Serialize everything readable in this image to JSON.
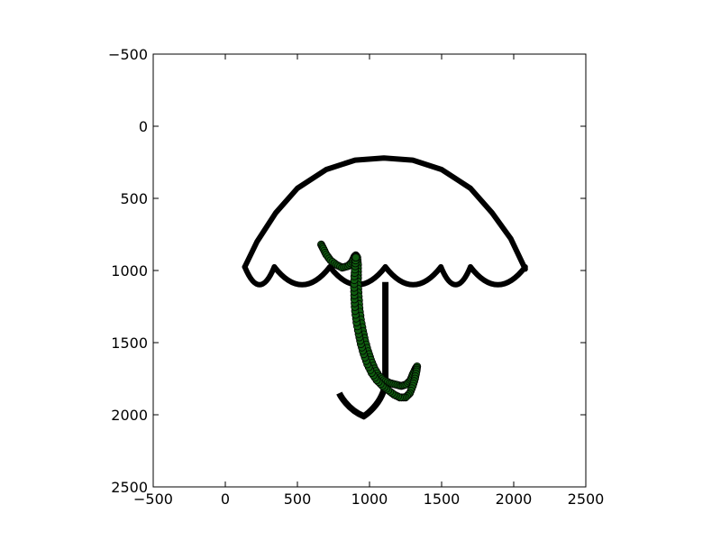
{
  "chart_data": {
    "type": "scatter",
    "title": "",
    "xlabel": "",
    "ylabel": "",
    "xlim": [
      -500,
      2500
    ],
    "ylim": [
      2500,
      -500
    ],
    "y_inverted": true,
    "grid": false,
    "xticks": [
      -500,
      0,
      500,
      1000,
      1500,
      2000,
      2500
    ],
    "yticks": [
      -500,
      0,
      500,
      1000,
      1500,
      2000,
      2500
    ],
    "xtick_labels": [
      "−500",
      "0",
      "500",
      "1000",
      "1500",
      "2000",
      "2500"
    ],
    "ytick_labels": [
      "−500",
      "0",
      "500",
      "1000",
      "1500",
      "2000",
      "2500"
    ],
    "background_image": {
      "subject": "umbrella outline",
      "color": "#000000",
      "canopy_top": [
        [
          135,
          975
        ],
        [
          220,
          800
        ],
        [
          350,
          600
        ],
        [
          500,
          430
        ],
        [
          700,
          300
        ],
        [
          900,
          235
        ],
        [
          1100,
          220
        ],
        [
          1300,
          235
        ],
        [
          1500,
          300
        ],
        [
          1700,
          430
        ],
        [
          1850,
          600
        ],
        [
          1980,
          780
        ],
        [
          2080,
          990
        ]
      ],
      "canopy_scallops": [
        [
          [
            135,
            975
          ],
          [
            340,
            975
          ]
        ],
        [
          [
            340,
            975
          ],
          [
            725,
            975
          ]
        ],
        [
          [
            725,
            975
          ],
          [
            1110,
            975
          ]
        ],
        [
          [
            1110,
            975
          ],
          [
            1495,
            975
          ]
        ],
        [
          [
            1495,
            975
          ],
          [
            1700,
            975
          ]
        ],
        [
          [
            1700,
            975
          ],
          [
            2080,
            975
          ]
        ]
      ],
      "shaft": [
        [
          1110,
          1080
        ],
        [
          1110,
          1780
        ]
      ],
      "hook": [
        [
          1110,
          1780
        ],
        [
          1090,
          1930
        ],
        [
          960,
          2010
        ],
        [
          840,
          1960
        ],
        [
          790,
          1850
        ]
      ]
    },
    "series": [
      {
        "color": "#0f5c0f",
        "edgecolor": "#000000",
        "marker": "o",
        "points": [
          [
            665,
            820
          ],
          [
            680,
            850
          ],
          [
            700,
            890
          ],
          [
            730,
            930
          ],
          [
            770,
            960
          ],
          [
            810,
            980
          ],
          [
            850,
            970
          ],
          [
            880,
            940
          ],
          [
            895,
            905
          ],
          [
            905,
            895
          ],
          [
            915,
            910
          ],
          [
            920,
            960
          ],
          [
            920,
            1030
          ],
          [
            920,
            1100
          ],
          [
            925,
            1180
          ],
          [
            930,
            1260
          ],
          [
            940,
            1340
          ],
          [
            955,
            1420
          ],
          [
            970,
            1490
          ],
          [
            990,
            1560
          ],
          [
            1010,
            1620
          ],
          [
            1035,
            1680
          ],
          [
            1065,
            1730
          ],
          [
            1100,
            1760
          ],
          [
            1140,
            1780
          ],
          [
            1180,
            1790
          ],
          [
            1220,
            1800
          ],
          [
            1255,
            1790
          ],
          [
            1285,
            1760
          ],
          [
            1300,
            1720
          ],
          [
            1320,
            1680
          ],
          [
            1330,
            1665
          ],
          [
            1325,
            1700
          ],
          [
            1315,
            1750
          ],
          [
            1300,
            1800
          ],
          [
            1280,
            1850
          ],
          [
            1250,
            1880
          ],
          [
            1210,
            1880
          ],
          [
            1170,
            1860
          ],
          [
            1130,
            1830
          ],
          [
            1090,
            1800
          ],
          [
            1050,
            1760
          ],
          [
            1015,
            1710
          ],
          [
            985,
            1650
          ],
          [
            960,
            1580
          ],
          [
            940,
            1510
          ],
          [
            925,
            1440
          ],
          [
            910,
            1360
          ],
          [
            900,
            1280
          ],
          [
            895,
            1200
          ],
          [
            893,
            1120
          ],
          [
            895,
            1040
          ],
          [
            900,
            970
          ],
          [
            905,
            910
          ]
        ]
      }
    ]
  }
}
